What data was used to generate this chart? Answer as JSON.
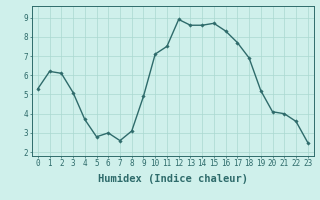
{
  "x": [
    0,
    1,
    2,
    3,
    4,
    5,
    6,
    7,
    8,
    9,
    10,
    11,
    12,
    13,
    14,
    15,
    16,
    17,
    18,
    19,
    20,
    21,
    22,
    23
  ],
  "y": [
    5.3,
    6.2,
    6.1,
    5.1,
    3.7,
    2.8,
    3.0,
    2.6,
    3.1,
    4.9,
    7.1,
    7.5,
    8.9,
    8.6,
    8.6,
    8.7,
    8.3,
    7.7,
    6.9,
    5.2,
    4.1,
    4.0,
    3.6,
    2.5
  ],
  "line_color": "#2e6b6b",
  "marker": "D",
  "marker_size": 1.8,
  "line_width": 1.0,
  "bg_color": "#cff0eb",
  "grid_color": "#aad8d0",
  "xlabel": "Humidex (Indice chaleur)",
  "xlim": [
    -0.5,
    23.5
  ],
  "ylim": [
    1.8,
    9.6
  ],
  "yticks": [
    2,
    3,
    4,
    5,
    6,
    7,
    8,
    9
  ],
  "xticks": [
    0,
    1,
    2,
    3,
    4,
    5,
    6,
    7,
    8,
    9,
    10,
    11,
    12,
    13,
    14,
    15,
    16,
    17,
    18,
    19,
    20,
    21,
    22,
    23
  ],
  "tick_label_fontsize": 5.5,
  "xlabel_fontsize": 7.5,
  "tick_color": "#2e6b6b",
  "axis_color": "#2e6b6b"
}
